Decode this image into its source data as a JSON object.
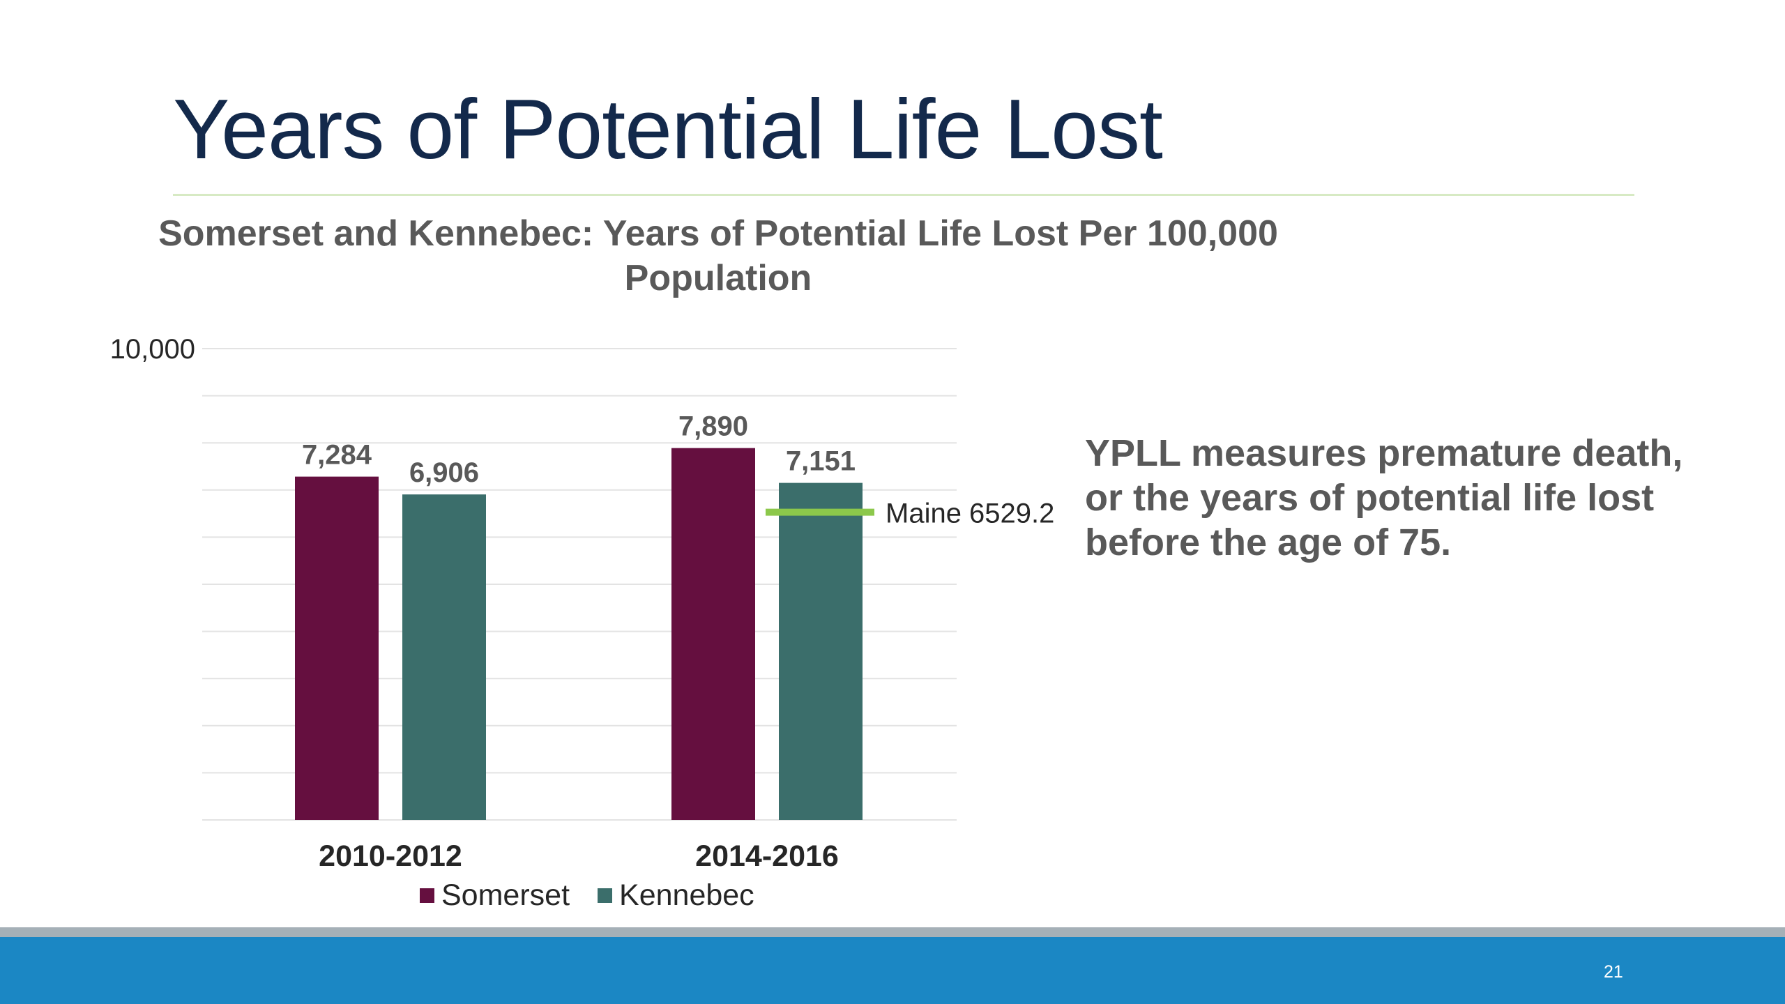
{
  "slide": {
    "title": "Years of Potential Life Lost",
    "note": "YPLL measures premature death, or the years of potential life lost before the age of 75.",
    "page_number": "21"
  },
  "chart_data": {
    "type": "bar",
    "title": "Somerset and Kennebec: Years of Potential Life Lost Per 100,000 Population",
    "categories": [
      "2010-2012",
      "2014-2016"
    ],
    "series": [
      {
        "name": "Somerset",
        "color": "#650f3f",
        "values": [
          7284,
          7890
        ],
        "labels": [
          "7,284",
          "7,890"
        ]
      },
      {
        "name": "Kennebec",
        "color": "#3b6e6b",
        "values": [
          6906,
          7151
        ],
        "labels": [
          "6,906",
          "7,151"
        ]
      }
    ],
    "ylim": [
      0,
      10000
    ],
    "y_tick_labels": [
      "10,000"
    ],
    "grid": true,
    "legend_position": "bottom",
    "reference_line": {
      "label": "Maine 6529.2",
      "value": 6529.2,
      "color": "#8cc84b"
    }
  }
}
